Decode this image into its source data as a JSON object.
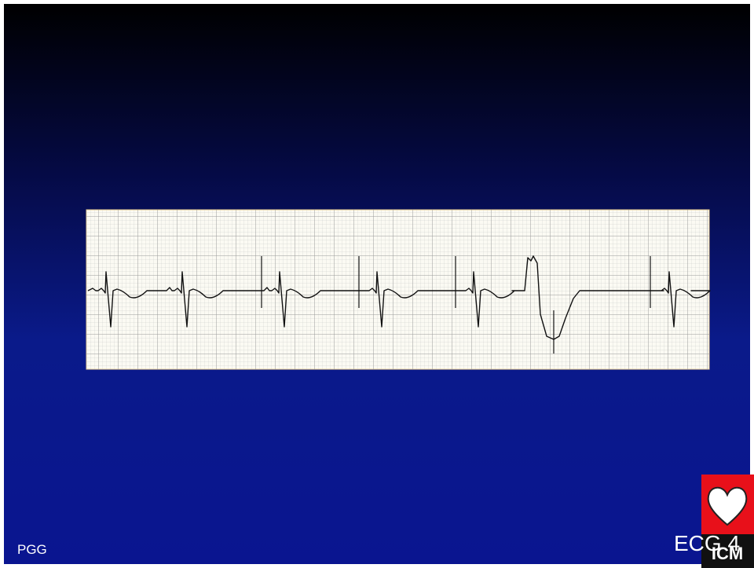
{
  "footer": {
    "left": "PGG",
    "right": "ECG 4"
  },
  "logo": {
    "text": "ICM"
  }
}
